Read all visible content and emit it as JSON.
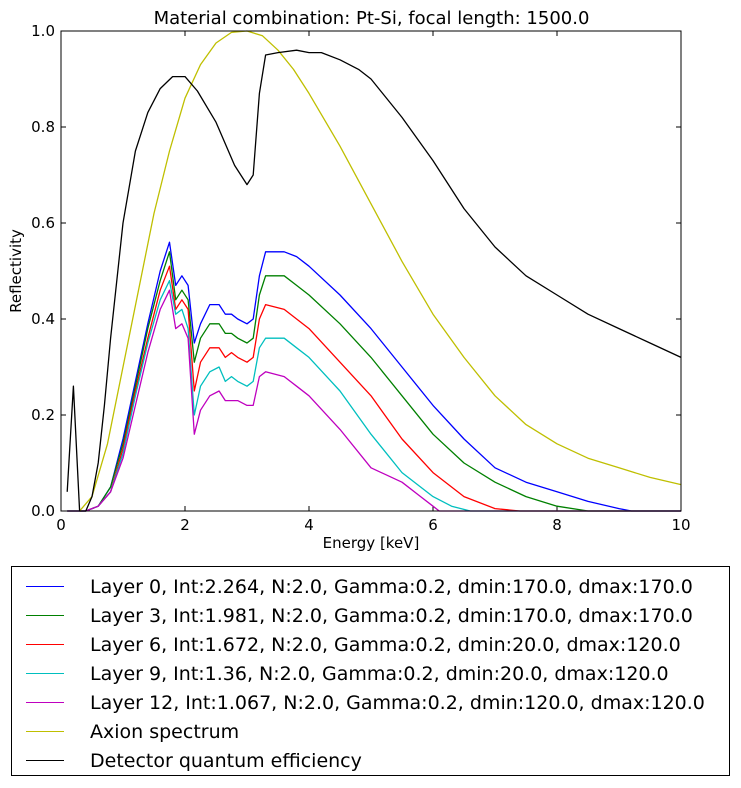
{
  "chart_data": {
    "type": "line",
    "title": "Material combination: Pt-Si, focal length: 1500.0",
    "xlabel": "Energy [keV]",
    "ylabel": "Reflectivity",
    "xlim": [
      0,
      10
    ],
    "ylim": [
      0,
      1.0
    ],
    "xticks": [
      0,
      2,
      4,
      6,
      8,
      10
    ],
    "xtick_labels": [
      "0",
      "2",
      "4",
      "6",
      "8",
      "10"
    ],
    "yticks": [
      0.0,
      0.2,
      0.4,
      0.6,
      0.8,
      1.0
    ],
    "ytick_labels": [
      "0.0",
      "0.2",
      "0.4",
      "0.6",
      "0.8",
      "1.0"
    ],
    "legend_position": "below",
    "series": [
      {
        "name": "Layer 0, Int:2.264, N:2.0, Gamma:0.2, dmin:170.0, dmax:170.0",
        "color": "#0000ff",
        "x": [
          0.1,
          0.4,
          0.6,
          0.8,
          1.0,
          1.2,
          1.4,
          1.6,
          1.75,
          1.85,
          1.95,
          2.05,
          2.15,
          2.25,
          2.4,
          2.55,
          2.65,
          2.75,
          2.85,
          3.0,
          3.1,
          3.2,
          3.3,
          3.6,
          3.8,
          4.0,
          4.5,
          5.0,
          5.5,
          6.0,
          6.5,
          7.0,
          7.5,
          8.0,
          8.5,
          9.0,
          9.2,
          10.0
        ],
        "y": [
          0,
          0,
          0.01,
          0.05,
          0.15,
          0.27,
          0.39,
          0.5,
          0.56,
          0.47,
          0.49,
          0.47,
          0.35,
          0.39,
          0.43,
          0.43,
          0.41,
          0.41,
          0.4,
          0.39,
          0.4,
          0.49,
          0.54,
          0.54,
          0.53,
          0.51,
          0.45,
          0.38,
          0.3,
          0.22,
          0.15,
          0.09,
          0.06,
          0.04,
          0.02,
          0.005,
          0,
          0
        ]
      },
      {
        "name": "Layer 3, Int:1.981, N:2.0, Gamma:0.2, dmin:170.0, dmax:170.0",
        "color": "#008000",
        "x": [
          0.1,
          0.4,
          0.6,
          0.8,
          1.0,
          1.2,
          1.4,
          1.6,
          1.75,
          1.85,
          1.95,
          2.05,
          2.15,
          2.25,
          2.4,
          2.55,
          2.65,
          2.75,
          2.85,
          3.0,
          3.1,
          3.2,
          3.3,
          3.6,
          3.8,
          4.0,
          4.5,
          5.0,
          5.5,
          6.0,
          6.5,
          7.0,
          7.5,
          8.0,
          8.5,
          10.0
        ],
        "y": [
          0,
          0,
          0.01,
          0.05,
          0.14,
          0.26,
          0.38,
          0.48,
          0.54,
          0.44,
          0.46,
          0.44,
          0.31,
          0.36,
          0.39,
          0.39,
          0.37,
          0.37,
          0.36,
          0.35,
          0.36,
          0.45,
          0.49,
          0.49,
          0.47,
          0.45,
          0.39,
          0.32,
          0.24,
          0.16,
          0.1,
          0.06,
          0.03,
          0.01,
          0,
          0
        ]
      },
      {
        "name": "Layer 6, Int:1.672, N:2.0, Gamma:0.2, dmin:20.0, dmax:120.0",
        "color": "#ff0000",
        "x": [
          0.1,
          0.4,
          0.6,
          0.8,
          1.0,
          1.2,
          1.4,
          1.6,
          1.75,
          1.85,
          1.95,
          2.05,
          2.15,
          2.25,
          2.4,
          2.55,
          2.65,
          2.75,
          2.85,
          3.0,
          3.1,
          3.2,
          3.3,
          3.6,
          3.8,
          4.0,
          4.5,
          5.0,
          5.5,
          6.0,
          6.5,
          7.0,
          7.4,
          10.0
        ],
        "y": [
          0,
          0,
          0.01,
          0.04,
          0.13,
          0.25,
          0.36,
          0.46,
          0.51,
          0.42,
          0.44,
          0.42,
          0.25,
          0.31,
          0.34,
          0.34,
          0.32,
          0.33,
          0.32,
          0.31,
          0.32,
          0.4,
          0.43,
          0.42,
          0.4,
          0.38,
          0.31,
          0.24,
          0.15,
          0.08,
          0.03,
          0.005,
          0,
          0
        ]
      },
      {
        "name": "Layer 9, Int:1.36, N:2.0, Gamma:0.2, dmin:20.0, dmax:120.0",
        "color": "#00bfbf",
        "x": [
          0.1,
          0.4,
          0.6,
          0.8,
          1.0,
          1.2,
          1.4,
          1.6,
          1.75,
          1.85,
          1.95,
          2.05,
          2.15,
          2.25,
          2.4,
          2.55,
          2.65,
          2.75,
          2.85,
          3.0,
          3.1,
          3.2,
          3.3,
          3.6,
          3.8,
          4.0,
          4.5,
          5.0,
          5.5,
          6.0,
          6.3,
          6.6,
          10.0
        ],
        "y": [
          0,
          0,
          0.01,
          0.04,
          0.12,
          0.24,
          0.35,
          0.44,
          0.48,
          0.41,
          0.42,
          0.38,
          0.2,
          0.26,
          0.29,
          0.3,
          0.27,
          0.28,
          0.27,
          0.26,
          0.27,
          0.34,
          0.36,
          0.36,
          0.34,
          0.32,
          0.25,
          0.16,
          0.08,
          0.03,
          0.01,
          0,
          0
        ]
      },
      {
        "name": "Layer 12, Int:1.067, N:2.0, Gamma:0.2, dmin:120.0, dmax:120.0",
        "color": "#bf00bf",
        "x": [
          0.1,
          0.4,
          0.6,
          0.8,
          1.0,
          1.2,
          1.4,
          1.6,
          1.75,
          1.85,
          1.95,
          2.05,
          2.15,
          2.25,
          2.4,
          2.55,
          2.65,
          2.75,
          2.85,
          3.0,
          3.1,
          3.2,
          3.3,
          3.6,
          3.8,
          4.0,
          4.5,
          5.0,
          5.5,
          5.8,
          6.0,
          6.1,
          10.0
        ],
        "y": [
          0,
          0,
          0.01,
          0.04,
          0.11,
          0.22,
          0.33,
          0.42,
          0.46,
          0.38,
          0.39,
          0.36,
          0.16,
          0.21,
          0.24,
          0.25,
          0.23,
          0.23,
          0.23,
          0.22,
          0.22,
          0.28,
          0.29,
          0.28,
          0.26,
          0.24,
          0.17,
          0.09,
          0.06,
          0.03,
          0.01,
          0,
          0
        ]
      },
      {
        "name": "Axion spectrum",
        "color": "#bfbf00",
        "x": [
          0.3,
          0.5,
          0.75,
          1.0,
          1.25,
          1.5,
          1.75,
          2.0,
          2.25,
          2.5,
          2.75,
          3.0,
          3.25,
          3.5,
          3.75,
          4.0,
          4.5,
          5.0,
          5.5,
          6.0,
          6.5,
          7.0,
          7.5,
          8.0,
          8.5,
          9.0,
          9.5,
          10.0
        ],
        "y": [
          0,
          0.03,
          0.14,
          0.3,
          0.46,
          0.62,
          0.75,
          0.86,
          0.93,
          0.975,
          0.997,
          1.0,
          0.99,
          0.96,
          0.92,
          0.87,
          0.76,
          0.64,
          0.52,
          0.41,
          0.32,
          0.24,
          0.18,
          0.14,
          0.11,
          0.09,
          0.07,
          0.055
        ]
      },
      {
        "name": "Detector quantum efficiency",
        "color": "#000000",
        "x": [
          0.1,
          0.2,
          0.3,
          0.4,
          0.5,
          0.6,
          0.7,
          0.8,
          1.0,
          1.2,
          1.4,
          1.6,
          1.8,
          2.0,
          2.2,
          2.5,
          2.8,
          3.0,
          3.1,
          3.2,
          3.3,
          3.5,
          3.8,
          4.0,
          4.2,
          4.5,
          4.8,
          5.0,
          5.5,
          6.0,
          6.5,
          7.0,
          7.5,
          8.0,
          8.5,
          9.0,
          9.5,
          10.0
        ],
        "y": [
          0.04,
          0.26,
          0,
          0,
          0.03,
          0.1,
          0.22,
          0.36,
          0.6,
          0.75,
          0.83,
          0.88,
          0.905,
          0.905,
          0.875,
          0.81,
          0.72,
          0.68,
          0.7,
          0.87,
          0.95,
          0.955,
          0.96,
          0.955,
          0.955,
          0.94,
          0.92,
          0.9,
          0.82,
          0.73,
          0.63,
          0.55,
          0.49,
          0.45,
          0.41,
          0.38,
          0.35,
          0.32
        ]
      }
    ]
  }
}
